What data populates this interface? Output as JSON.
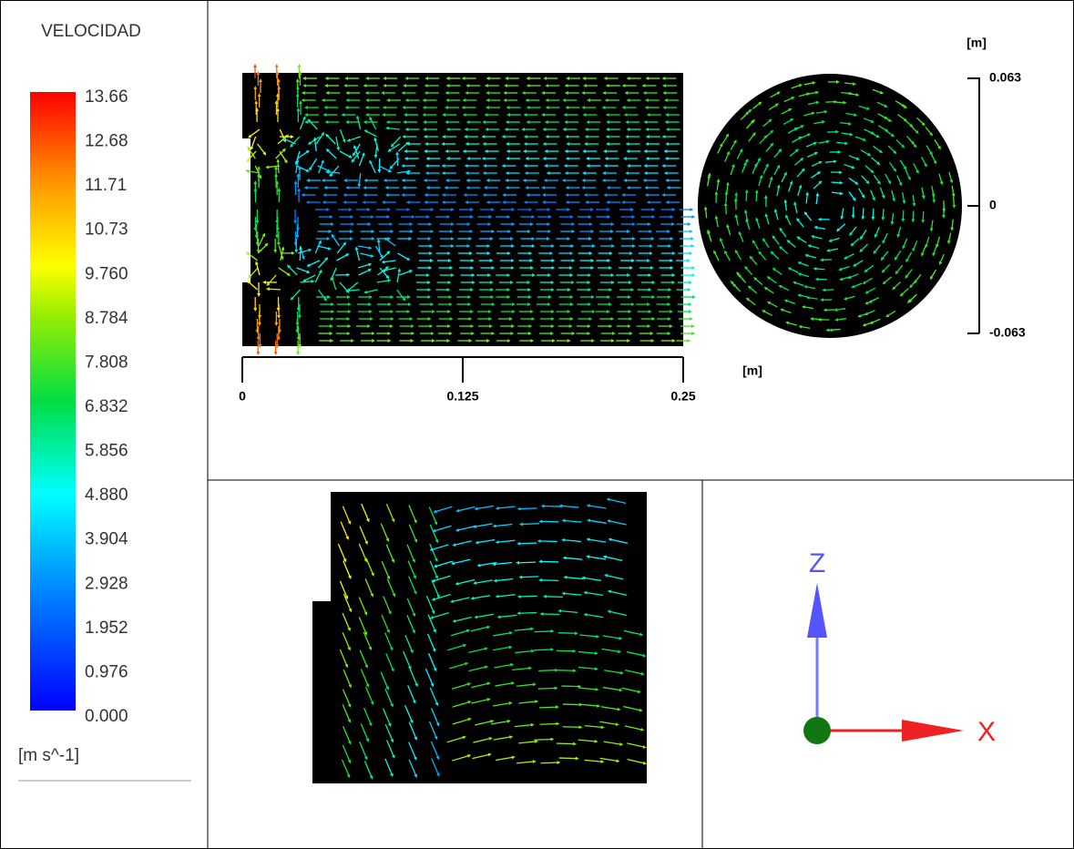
{
  "legend": {
    "title": "VELOCIDAD",
    "labels": [
      "13.66",
      "12.68",
      "11.71",
      "10.73",
      "9.760",
      "8.784",
      "7.808",
      "6.832",
      "5.856",
      "4.880",
      "3.904",
      "2.928",
      "1.952",
      "0.976",
      "0.000"
    ],
    "unit": "[m s^-1]"
  },
  "side_view": {
    "x_axis": {
      "ticks": [
        "0",
        "0.125",
        "0.25"
      ],
      "unit": "[m]"
    }
  },
  "cross_section": {
    "y_axis": {
      "ticks": [
        "0.063",
        "0",
        "-0.063"
      ],
      "unit": "[m]"
    }
  },
  "axes_triad": {
    "vertical": "Z",
    "horizontal": "X"
  }
}
